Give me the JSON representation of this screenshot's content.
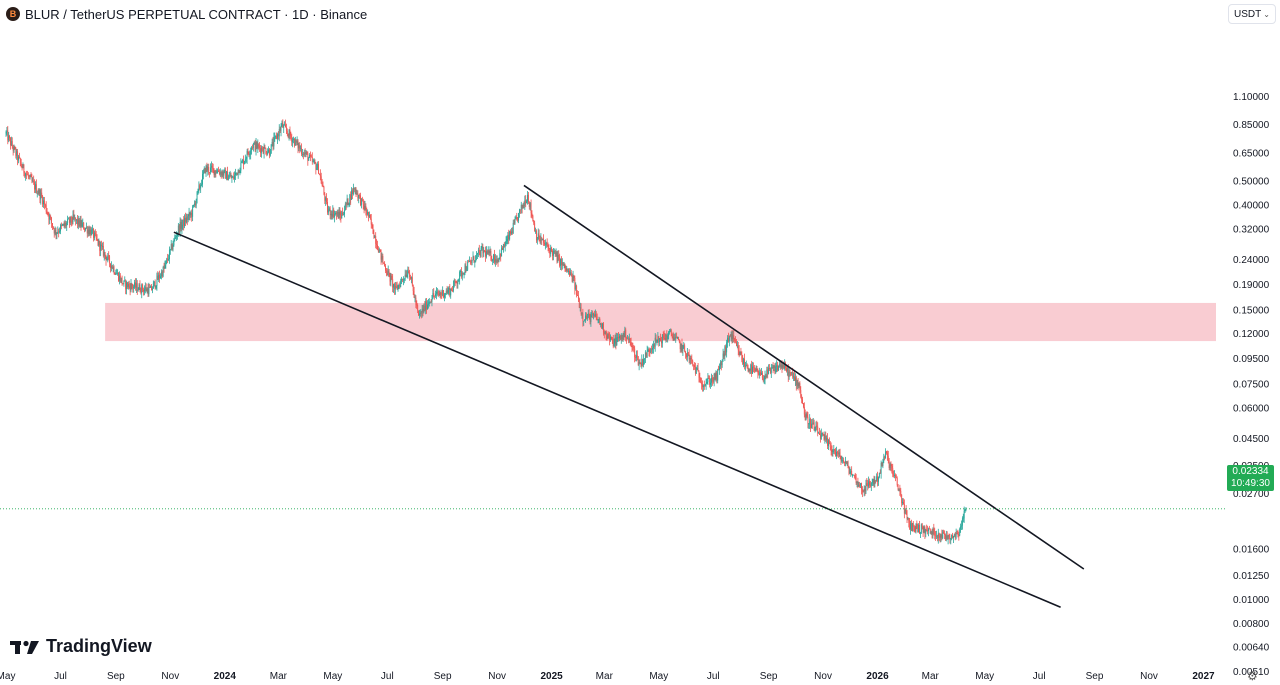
{
  "header": {
    "symbol_logo_text": "B",
    "title": "BLUR / TetherUS PERPETUAL CONTRACT · 1D · Binance"
  },
  "currency_selector": {
    "label": "USDT"
  },
  "price_tag": {
    "price": "0.02334",
    "countdown": "10:49:30",
    "color": "#22ab55"
  },
  "branding": {
    "name": "TradingView"
  },
  "icons": {
    "settings": "gear-icon",
    "logo": "tradingview-logo-icon",
    "chevron": "chevron-down-icon"
  },
  "chart_data": {
    "type": "candlestick",
    "title": "BLUR / TetherUS PERPETUAL CONTRACT · 1D · Binance",
    "y_scale": "log",
    "ylim": [
      0.0048,
      1.2
    ],
    "xlim": [
      "2023-05-01",
      "2027-01-15"
    ],
    "y_ticks": [
      {
        "label": "1.10000",
        "value": 1.1
      },
      {
        "label": "0.85000",
        "value": 0.85
      },
      {
        "label": "0.65000",
        "value": 0.65
      },
      {
        "label": "0.50000",
        "value": 0.5
      },
      {
        "label": "0.40000",
        "value": 0.4
      },
      {
        "label": "0.32000",
        "value": 0.32
      },
      {
        "label": "0.24000",
        "value": 0.24
      },
      {
        "label": "0.19000",
        "value": 0.19
      },
      {
        "label": "0.15000",
        "value": 0.15
      },
      {
        "label": "0.12000",
        "value": 0.12
      },
      {
        "label": "0.09500",
        "value": 0.095
      },
      {
        "label": "0.07500",
        "value": 0.075
      },
      {
        "label": "0.06000",
        "value": 0.06
      },
      {
        "label": "0.04500",
        "value": 0.045
      },
      {
        "label": "0.03500",
        "value": 0.035
      },
      {
        "label": "0.02700",
        "value": 0.027
      },
      {
        "label": "0.01600",
        "value": 0.016
      },
      {
        "label": "0.01250",
        "value": 0.0125
      },
      {
        "label": "0.01000",
        "value": 0.01
      },
      {
        "label": "0.00800",
        "value": 0.008
      },
      {
        "label": "0.00640",
        "value": 0.0064
      },
      {
        "label": "0.00510",
        "value": 0.0051
      }
    ],
    "x_ticks": [
      {
        "label": "May",
        "date": "2023-05-01",
        "bold": false
      },
      {
        "label": "Jul",
        "date": "2023-07-01",
        "bold": false
      },
      {
        "label": "Sep",
        "date": "2023-09-01",
        "bold": false
      },
      {
        "label": "Nov",
        "date": "2023-11-01",
        "bold": false
      },
      {
        "label": "2024",
        "date": "2024-01-01",
        "bold": true
      },
      {
        "label": "Mar",
        "date": "2024-03-01",
        "bold": false
      },
      {
        "label": "May",
        "date": "2024-05-01",
        "bold": false
      },
      {
        "label": "Jul",
        "date": "2024-07-01",
        "bold": false
      },
      {
        "label": "Sep",
        "date": "2024-09-01",
        "bold": false
      },
      {
        "label": "Nov",
        "date": "2024-11-01",
        "bold": false
      },
      {
        "label": "2025",
        "date": "2025-01-01",
        "bold": true
      },
      {
        "label": "Mar",
        "date": "2025-03-01",
        "bold": false
      },
      {
        "label": "May",
        "date": "2025-05-01",
        "bold": false
      },
      {
        "label": "Jul",
        "date": "2025-07-01",
        "bold": false
      },
      {
        "label": "Sep",
        "date": "2025-09-01",
        "bold": false
      },
      {
        "label": "Nov",
        "date": "2025-11-01",
        "bold": false
      },
      {
        "label": "2026",
        "date": "2026-01-01",
        "bold": true
      },
      {
        "label": "Mar",
        "date": "2026-03-01",
        "bold": false
      },
      {
        "label": "May",
        "date": "2026-05-01",
        "bold": false
      },
      {
        "label": "Jul",
        "date": "2026-07-01",
        "bold": false
      },
      {
        "label": "Sep",
        "date": "2026-09-01",
        "bold": false
      },
      {
        "label": "Nov",
        "date": "2026-11-01",
        "bold": false
      },
      {
        "label": "2027",
        "date": "2027-01-01",
        "bold": true
      }
    ],
    "colors": {
      "up": "#26a69a",
      "down": "#ef5350",
      "zone": "#f9c9d0",
      "trendline": "#131722",
      "price_line": "#22ab55"
    },
    "price_path": [
      {
        "date": "2023-05-01",
        "close": 0.78
      },
      {
        "date": "2023-05-20",
        "close": 0.56
      },
      {
        "date": "2023-06-10",
        "close": 0.43
      },
      {
        "date": "2023-06-25",
        "close": 0.31
      },
      {
        "date": "2023-07-15",
        "close": 0.35
      },
      {
        "date": "2023-08-05",
        "close": 0.31
      },
      {
        "date": "2023-08-20",
        "close": 0.25
      },
      {
        "date": "2023-09-10",
        "close": 0.19
      },
      {
        "date": "2023-10-10",
        "close": 0.18
      },
      {
        "date": "2023-10-25",
        "close": 0.22
      },
      {
        "date": "2023-11-10",
        "close": 0.32
      },
      {
        "date": "2023-11-25",
        "close": 0.37
      },
      {
        "date": "2023-12-10",
        "close": 0.56
      },
      {
        "date": "2023-12-25",
        "close": 0.55
      },
      {
        "date": "2024-01-10",
        "close": 0.51
      },
      {
        "date": "2024-02-01",
        "close": 0.7
      },
      {
        "date": "2024-02-20",
        "close": 0.66
      },
      {
        "date": "2024-03-05",
        "close": 0.84
      },
      {
        "date": "2024-03-25",
        "close": 0.68
      },
      {
        "date": "2024-04-15",
        "close": 0.56
      },
      {
        "date": "2024-04-25",
        "close": 0.38
      },
      {
        "date": "2024-05-10",
        "close": 0.36
      },
      {
        "date": "2024-05-25",
        "close": 0.47
      },
      {
        "date": "2024-06-10",
        "close": 0.36
      },
      {
        "date": "2024-06-25",
        "close": 0.24
      },
      {
        "date": "2024-07-10",
        "close": 0.18
      },
      {
        "date": "2024-07-25",
        "close": 0.22
      },
      {
        "date": "2024-08-05",
        "close": 0.14
      },
      {
        "date": "2024-08-20",
        "close": 0.17
      },
      {
        "date": "2024-09-10",
        "close": 0.18
      },
      {
        "date": "2024-09-25",
        "close": 0.22
      },
      {
        "date": "2024-10-15",
        "close": 0.26
      },
      {
        "date": "2024-11-01",
        "close": 0.24
      },
      {
        "date": "2024-11-15",
        "close": 0.3
      },
      {
        "date": "2024-12-05",
        "close": 0.44
      },
      {
        "date": "2024-12-15",
        "close": 0.3
      },
      {
        "date": "2025-01-05",
        "close": 0.25
      },
      {
        "date": "2025-01-25",
        "close": 0.2
      },
      {
        "date": "2025-02-05",
        "close": 0.14
      },
      {
        "date": "2025-02-20",
        "close": 0.14
      },
      {
        "date": "2025-03-10",
        "close": 0.11
      },
      {
        "date": "2025-03-25",
        "close": 0.12
      },
      {
        "date": "2025-04-10",
        "close": 0.09
      },
      {
        "date": "2025-04-25",
        "close": 0.11
      },
      {
        "date": "2025-05-15",
        "close": 0.12
      },
      {
        "date": "2025-06-01",
        "close": 0.1
      },
      {
        "date": "2025-06-20",
        "close": 0.075
      },
      {
        "date": "2025-07-05",
        "close": 0.08
      },
      {
        "date": "2025-07-20",
        "close": 0.12
      },
      {
        "date": "2025-08-05",
        "close": 0.09
      },
      {
        "date": "2025-08-25",
        "close": 0.08
      },
      {
        "date": "2025-09-15",
        "close": 0.09
      },
      {
        "date": "2025-10-05",
        "close": 0.075
      },
      {
        "date": "2025-10-12",
        "close": 0.055
      },
      {
        "date": "2025-11-01",
        "close": 0.045
      },
      {
        "date": "2025-11-25",
        "close": 0.036
      },
      {
        "date": "2025-12-15",
        "close": 0.028
      },
      {
        "date": "2026-01-01",
        "close": 0.031
      },
      {
        "date": "2026-01-10",
        "close": 0.039
      },
      {
        "date": "2026-01-25",
        "close": 0.028
      },
      {
        "date": "2026-02-05",
        "close": 0.02
      },
      {
        "date": "2026-02-25",
        "close": 0.019
      },
      {
        "date": "2026-03-20",
        "close": 0.018
      },
      {
        "date": "2026-04-01",
        "close": 0.0185
      },
      {
        "date": "2026-04-10",
        "close": 0.02334
      }
    ],
    "trendlines": [
      {
        "name": "upper-resistance",
        "start": {
          "date": "2024-12-01",
          "price": 0.48
        },
        "end": {
          "date": "2026-08-20",
          "price": 0.0133
        }
      },
      {
        "name": "lower-support",
        "start": {
          "date": "2023-11-05",
          "price": 0.31
        },
        "end": {
          "date": "2026-07-25",
          "price": 0.0093
        }
      }
    ],
    "zones": [
      {
        "name": "support-resistance-zone",
        "from_date": "2023-08-20",
        "to_date": "2027-01-15",
        "low": 0.112,
        "high": 0.16
      }
    ],
    "current_price": 0.02334
  }
}
